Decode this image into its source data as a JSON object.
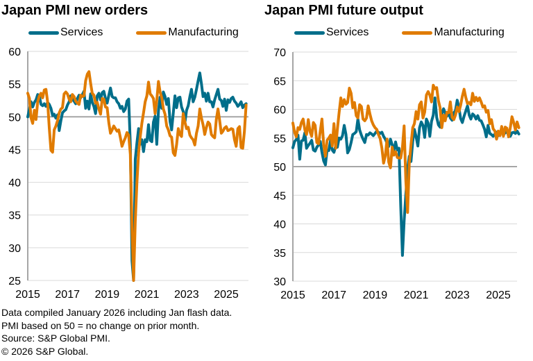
{
  "colors": {
    "services": "#006e8a",
    "manufacturing": "#e07b00",
    "grid": "#d9d9d9",
    "axis": "#a6a6a6"
  },
  "footnotes": [
    "Data compiled January 2026 including Jan flash data.",
    "PMI based on 50 = no change on prior month.",
    "Source: S&P Global PMI.",
    "© 2026 S&P Global."
  ],
  "chart_data": [
    {
      "type": "line",
      "title": "Japan PMI new orders",
      "xlabel": "",
      "ylabel": "",
      "ylim": [
        25,
        60
      ],
      "yticks": [
        25,
        30,
        35,
        40,
        45,
        50,
        55,
        60
      ],
      "xticks": [
        "2015",
        "2017",
        "2019",
        "2021",
        "2023",
        "2025"
      ],
      "reference_line": 50,
      "grid": true,
      "legend": "top",
      "x_start": "2015-01",
      "x_end": "2026-01",
      "frequency": "monthly",
      "series": [
        {
          "name": "Services",
          "values": [
            50.0,
            51.2,
            52.3,
            51.5,
            52.2,
            52.6,
            53.4,
            53.2,
            51.9,
            51.7,
            52.0,
            51.6,
            52.2,
            51.9,
            51.3,
            50.2,
            50.4,
            49.8,
            50.3,
            47.9,
            49.4,
            50.6,
            50.9,
            51.1,
            51.8,
            52.3,
            53.2,
            52.7,
            52.4,
            52.0,
            52.8,
            53.3,
            52.9,
            53.4,
            53.9,
            51.3,
            52.4,
            51.2,
            53.5,
            52.2,
            51.6,
            50.5,
            53.2,
            53.6,
            52.6,
            53.7,
            53.9,
            52.8,
            52.1,
            53.3,
            54.4,
            53.1,
            52.9,
            52.9,
            52.3,
            52.0,
            51.3,
            51.6,
            50.8,
            51.2,
            52.4,
            52.7,
            45.7,
            28.0,
            24.0,
            43.5,
            46.0,
            48.2,
            45.8,
            46.5,
            44.7,
            46.5,
            46.2,
            48.8,
            46.4,
            46.2,
            49.2,
            50.1,
            45.8,
            50.9,
            53.0,
            51.3,
            53.8,
            53.1,
            51.9,
            52.8,
            49.3,
            48.0,
            50.6,
            53.2,
            51.4,
            52.9,
            53.0,
            51.5,
            50.8,
            49.1,
            51.0,
            51.7,
            53.1,
            54.2,
            52.3,
            53.0,
            54.2,
            55.5,
            56.7,
            55.0,
            53.1,
            53.6,
            52.4,
            53.6,
            52.3,
            52.3,
            51.5,
            52.6,
            53.4,
            54.2,
            52.7,
            52.5,
            51.6,
            52.7,
            51.0,
            52.6,
            52.2,
            52.8,
            53.0,
            52.4,
            52.1,
            51.6,
            51.9,
            52.3,
            51.4,
            51.8,
            52.0
          ]
        },
        {
          "name": "Manufacturing",
          "values": [
            53.6,
            52.8,
            49.8,
            49.0,
            51.0,
            49.6,
            52.3,
            53.2,
            53.6,
            52.9,
            54.1,
            54.2,
            52.3,
            48.3,
            44.9,
            44.6,
            48.0,
            48.6,
            49.4,
            50.6,
            51.2,
            51.4,
            53.5,
            53.8,
            53.5,
            52.7,
            52.3,
            53.4,
            53.1,
            52.4,
            52.1,
            51.9,
            53.3,
            53.1,
            53.2,
            55.5,
            56.5,
            56.9,
            55.1,
            53.6,
            53.3,
            52.1,
            52.2,
            51.2,
            50.4,
            52.8,
            52.7,
            51.5,
            51.4,
            49.1,
            47.5,
            48.0,
            48.6,
            48.2,
            47.8,
            48.0,
            46.8,
            45.5,
            46.2,
            46.8,
            47.6,
            47.2,
            44.3,
            33.1,
            25.0,
            34.0,
            40.0,
            44.5,
            47.0,
            49.0,
            50.6,
            52.3,
            53.2,
            55.3,
            53.5,
            53.2,
            52.8,
            50.5,
            52.5,
            55.4,
            53.8,
            52.9,
            51.2,
            50.4,
            48.6,
            48.0,
            47.1,
            46.9,
            44.5,
            44.1,
            45.8,
            48.2,
            47.3,
            47.0,
            50.5,
            49.2,
            48.2,
            48.4,
            47.2,
            46.8,
            46.5,
            45.7,
            47.5,
            48.6,
            51.2,
            49.8,
            48.8,
            47.3,
            48.4,
            49.2,
            48.9,
            47.3,
            47.0,
            46.8,
            49.6,
            51.2,
            49.4,
            47.5,
            47.8,
            48.3,
            48.5,
            47.9,
            48.0,
            48.2,
            48.1,
            46.5,
            45.5,
            48.2,
            48.5,
            45.3,
            45.2,
            47.8,
            51.8
          ]
        }
      ]
    },
    {
      "type": "line",
      "title": "Japan PMI future output",
      "xlabel": "",
      "ylabel": "",
      "ylim": [
        30,
        70
      ],
      "yticks": [
        30,
        35,
        40,
        45,
        50,
        55,
        60,
        65,
        70
      ],
      "xticks": [
        "2015",
        "2017",
        "2019",
        "2021",
        "2023",
        "2025"
      ],
      "reference_line": 50,
      "grid": true,
      "legend": "top",
      "x_start": "2015-01",
      "x_end": "2026-01",
      "frequency": "monthly",
      "series": [
        {
          "name": "Services",
          "values": [
            53.3,
            54.4,
            54.7,
            55.5,
            51.3,
            54.5,
            54.6,
            55.9,
            53.2,
            53.7,
            54.1,
            54.6,
            52.9,
            52.7,
            53.4,
            53.8,
            54.4,
            52.5,
            51.0,
            50.3,
            52.9,
            52.8,
            54.6,
            52.9,
            52.5,
            53.6,
            53.4,
            55.0,
            54.8,
            55.4,
            57.2,
            55.6,
            52.4,
            53.0,
            54.2,
            55.6,
            55.8,
            56.1,
            58.3,
            56.4,
            55.5,
            54.8,
            54.2,
            55.6,
            55.5,
            55.9,
            55.7,
            55.4,
            55.8,
            56.2,
            56.0,
            55.8,
            56.0,
            55.3,
            54.8,
            54.1,
            53.5,
            54.8,
            53.8,
            52.8,
            54.3,
            52.9,
            53.2,
            43.2,
            34.5,
            40.5,
            45.2,
            49.6,
            51.8,
            50.9,
            54.4,
            56.5,
            55.2,
            53.6,
            56.8,
            57.8,
            57.2,
            55.1,
            58.3,
            57.6,
            55.3,
            57.9,
            59.0,
            62.0,
            58.6,
            57.3,
            56.9,
            59.2,
            60.1,
            59.4,
            58.8,
            59.5,
            58.5,
            58.1,
            59.4,
            59.8,
            61.6,
            60.3,
            58.4,
            57.7,
            58.8,
            59.7,
            60.6,
            59.0,
            58.3,
            59.2,
            58.9,
            58.3,
            58.9,
            58.1,
            58.0,
            57.3,
            56.5,
            55.2,
            57.2,
            55.8,
            55.6,
            55.3,
            55.7,
            56.0,
            55.4,
            55.9,
            56.5,
            55.6,
            55.9,
            56.2,
            55.4,
            55.3,
            55.9,
            56.0,
            55.8,
            56.2,
            55.7
          ]
        },
        {
          "name": "Manufacturing",
          "values": [
            57.6,
            56.0,
            55.2,
            56.8,
            56.5,
            57.7,
            58.3,
            56.4,
            55.6,
            58.2,
            56.1,
            55.3,
            57.7,
            57.2,
            54.2,
            54.0,
            56.2,
            58.3,
            53.8,
            51.8,
            54.6,
            55.0,
            55.5,
            53.6,
            57.5,
            53.2,
            56.5,
            59.4,
            62.0,
            60.5,
            61.7,
            60.9,
            61.2,
            63.7,
            62.8,
            60.3,
            61.2,
            58.9,
            58.5,
            60.8,
            60.5,
            58.3,
            58.0,
            58.5,
            60.6,
            59.2,
            58.0,
            57.3,
            56.8,
            56.5,
            55.6,
            54.9,
            53.2,
            50.6,
            51.9,
            54.8,
            50.8,
            49.8,
            53.4,
            52.0,
            52.6,
            51.6,
            51.5,
            51.5,
            53.4,
            57.1,
            47.5,
            42.0,
            50.5,
            53.8,
            56.8,
            57.5,
            59.6,
            58.3,
            60.8,
            61.3,
            58.5,
            59.5,
            62.5,
            63.1,
            62.5,
            61.3,
            64.2,
            63.6,
            63.8,
            61.5,
            60.3,
            56.8,
            59.0,
            58.0,
            59.5,
            59.4,
            61.3,
            58.6,
            58.2,
            59.0,
            60.4,
            59.6,
            60.7,
            62.3,
            63.5,
            62.1,
            61.0,
            61.2,
            60.8,
            62.8,
            61.4,
            62.1,
            61.5,
            62.0,
            61.3,
            60.4,
            60.6,
            59.5,
            59.8,
            57.5,
            58.2,
            56.6,
            56.2,
            54.8,
            56.2,
            55.4,
            57.0,
            55.3,
            56.9,
            56.7,
            55.2,
            56.8,
            58.7,
            57.7,
            56.4,
            57.8,
            56.8
          ]
        }
      ]
    }
  ]
}
